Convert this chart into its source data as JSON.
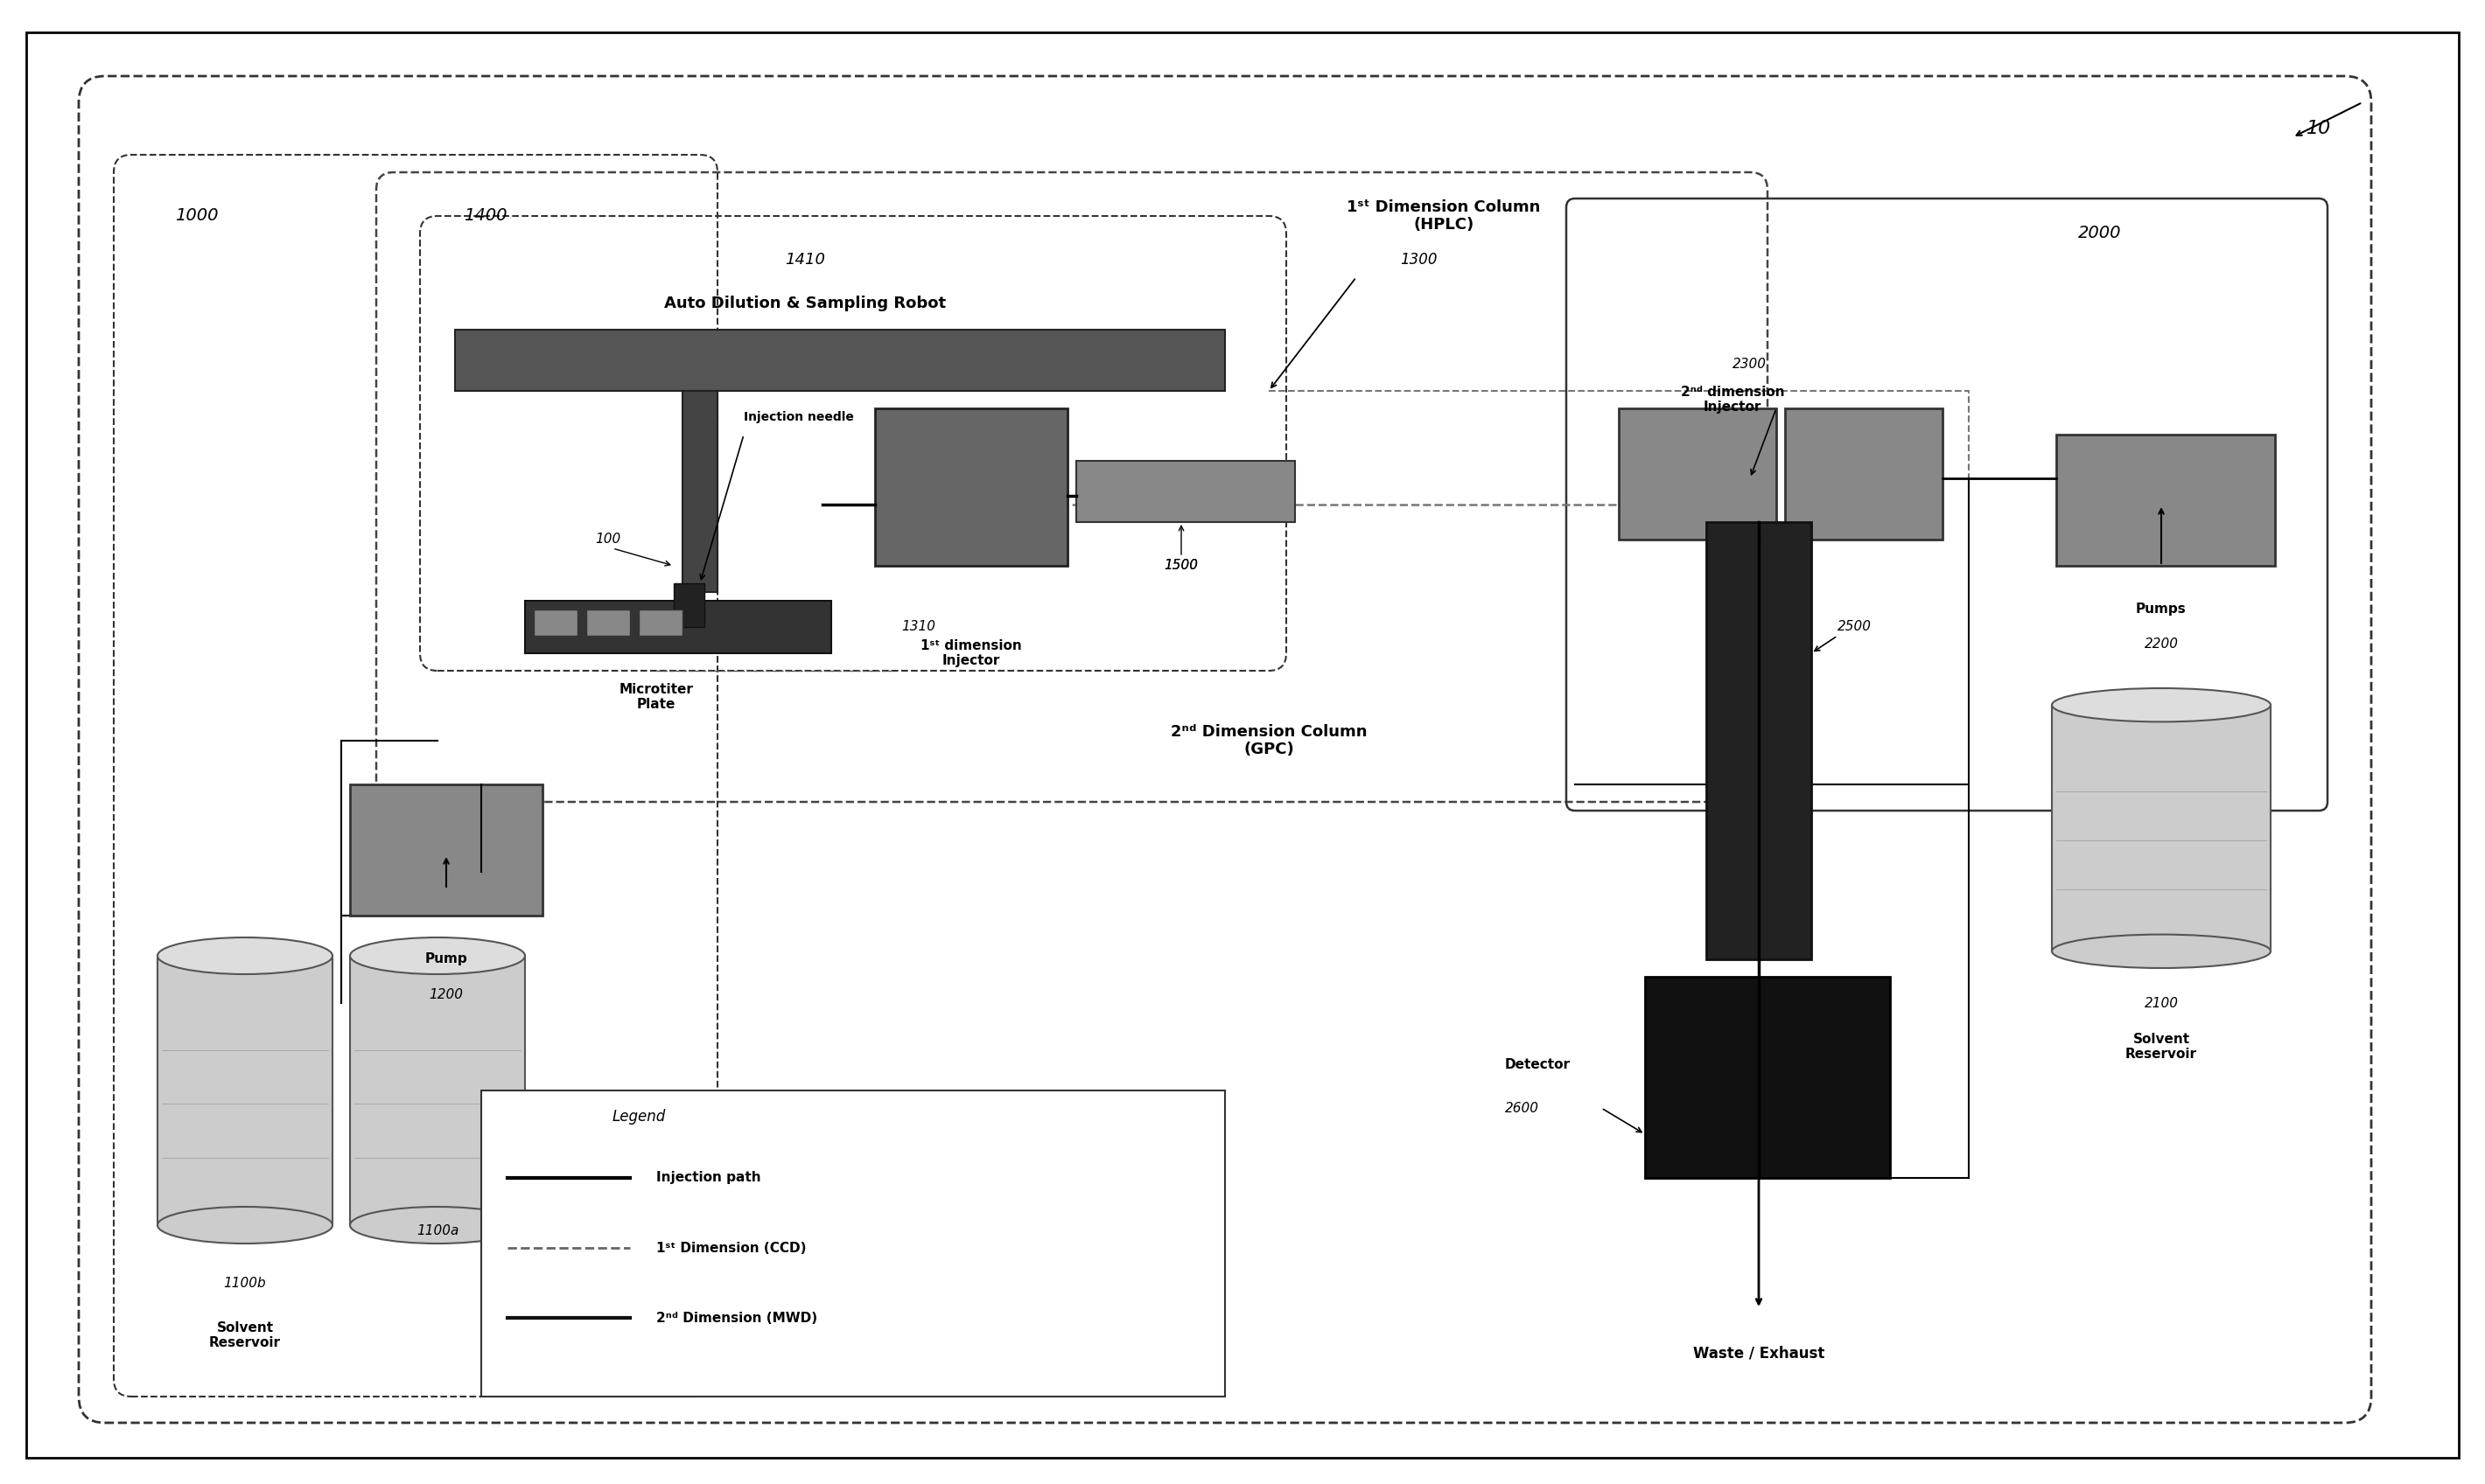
{
  "bg_color": "#ffffff",
  "title": "",
  "labels": {
    "system_label": "10",
    "subsystem_1000": "1000",
    "subsystem_1400": "1400",
    "subsystem_1410": "1410",
    "label_auto_dilution": "Auto Dilution & Sampling Robot",
    "label_injection_needle": "Injection needle",
    "label_microtiter": "Microtiter\nPlate",
    "label_1st_dim_col": "1ˢᵗ Dimension Column\n(HPLC)",
    "label_1st_dim_inj": "1ˢᵗ dimension\nInjector",
    "label_2nd_dim_col": "2ⁿᵈ Dimension Column\n(GPC)",
    "label_2nd_dim_inj": "2ⁿᵈ dimension\nInjector",
    "label_detector": "Detector",
    "label_waste": "Waste / Exhaust",
    "label_pump_left": "Pump",
    "label_solvent_res_left": "Solvent\nReservoir",
    "label_pumps_right": "Pumps",
    "label_solvent_res_right": "Solvent\nReservoir",
    "ref_100": "100",
    "ref_1100a": "1100a",
    "ref_1100b": "1100b",
    "ref_1200": "1200",
    "ref_1300": "1300",
    "ref_1310": "1310",
    "ref_1500": "1500",
    "ref_2000": "2000",
    "ref_2100": "2100",
    "ref_2200": "2200",
    "ref_2300": "2300",
    "ref_2500": "2500",
    "ref_2600": "2600",
    "legend_title": "Legend",
    "legend_injection": "Injection path",
    "legend_1st_dim": "1ˢᵗ Dimension (CCD)",
    "legend_2nd_dim": "2ⁿᵈ Dimension (MWD)"
  },
  "colors": {
    "box_fill_dark": "#555555",
    "box_fill_medium": "#888888",
    "box_fill_light": "#aaaaaa",
    "box_stroke": "#000000",
    "dashed_border": "#333333",
    "line_solid": "#000000",
    "line_dashed": "#555555",
    "legend_inj": "#000000",
    "legend_1st": "#777777",
    "legend_2nd": "#111111"
  }
}
